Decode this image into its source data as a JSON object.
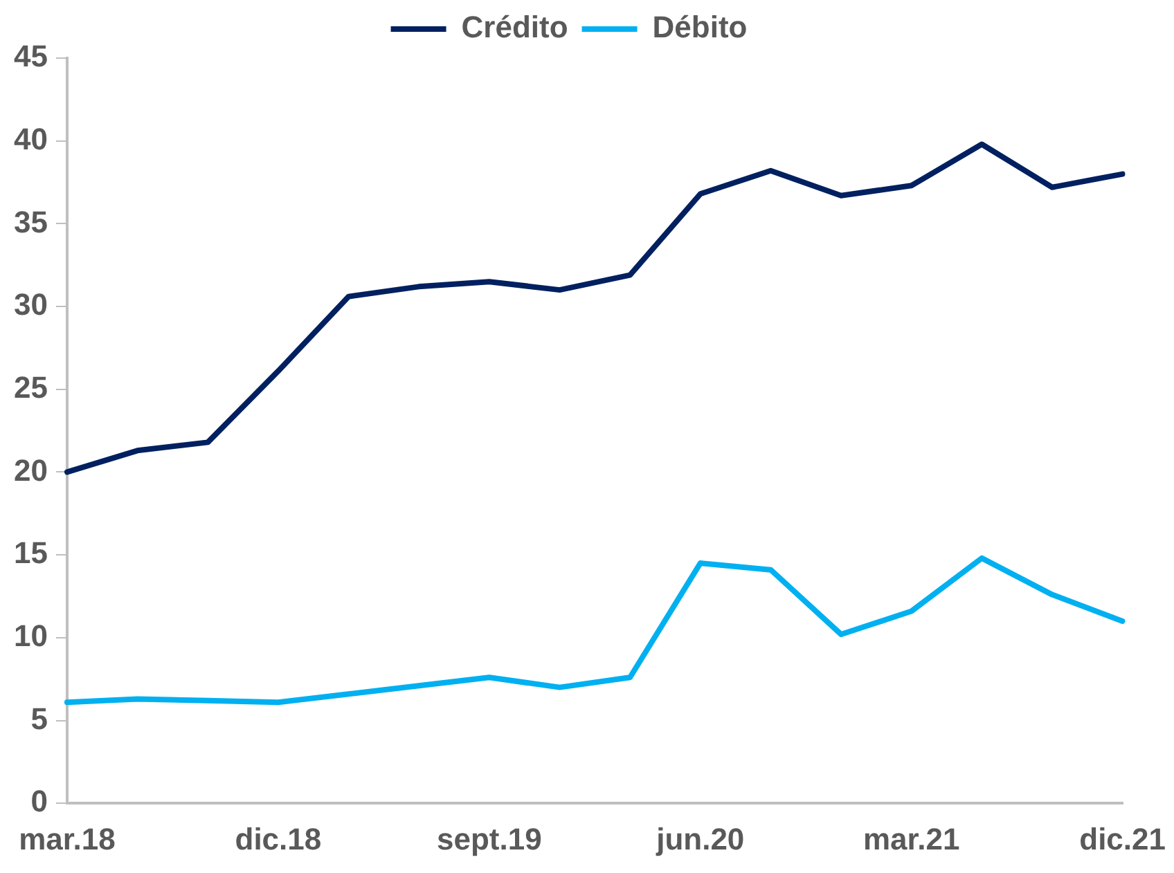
{
  "chart_data": {
    "type": "line",
    "categories": [
      "mar.18",
      null,
      null,
      "dic.18",
      null,
      null,
      "sept.19",
      null,
      null,
      "jun.20",
      null,
      null,
      "mar.21",
      null,
      null,
      "dic.21"
    ],
    "series": [
      {
        "name": "Crédito",
        "color": "#002060",
        "values": [
          20.0,
          21.3,
          21.8,
          26.1,
          30.6,
          31.2,
          31.5,
          31.0,
          31.9,
          36.8,
          38.2,
          36.7,
          37.3,
          39.8,
          37.2,
          38.0
        ]
      },
      {
        "name": "Débito",
        "color": "#00b0f0",
        "values": [
          6.1,
          6.3,
          6.2,
          6.1,
          6.6,
          7.1,
          7.6,
          7.0,
          7.6,
          14.5,
          14.1,
          10.2,
          11.6,
          14.8,
          12.6,
          11.0
        ]
      }
    ],
    "ylim": [
      0,
      45
    ],
    "yticks": [
      0,
      5,
      10,
      15,
      20,
      25,
      30,
      35,
      40,
      45
    ],
    "grid": false,
    "legend": "top",
    "marker": "none",
    "line_style": "solid"
  }
}
